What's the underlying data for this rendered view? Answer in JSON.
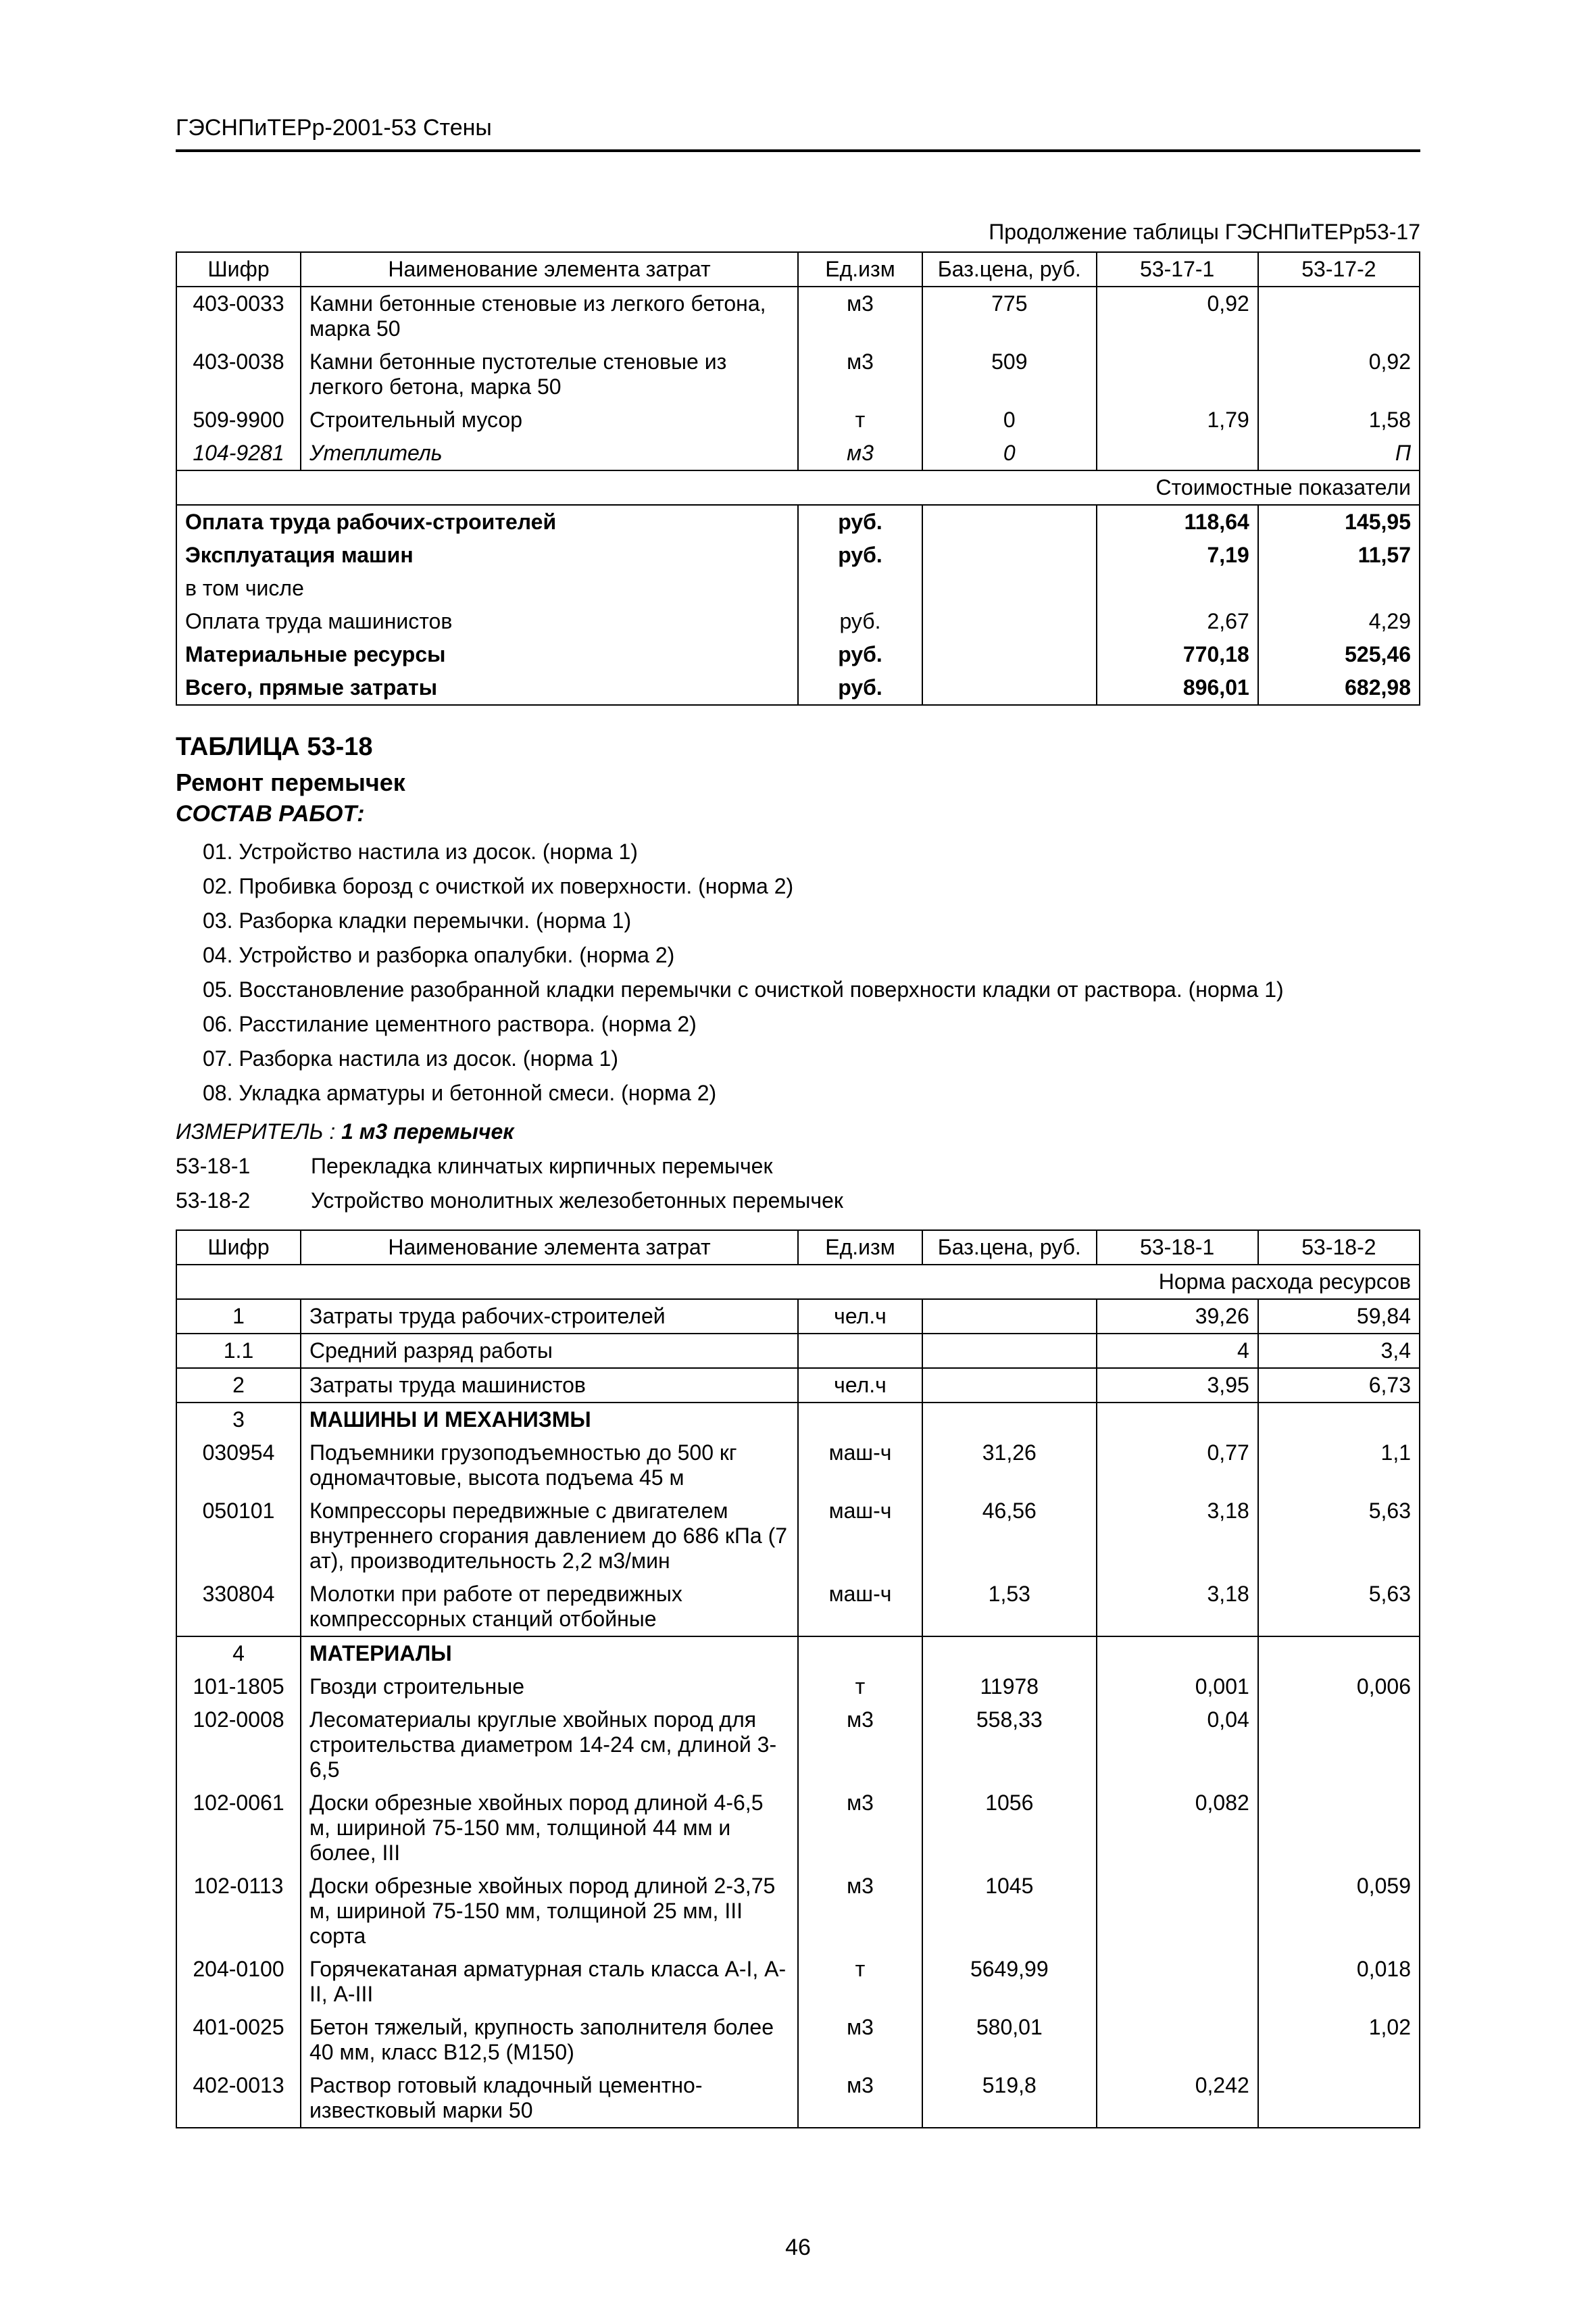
{
  "header": "ГЭСНПиТЕРр-2001-53 Стены",
  "t17": {
    "caption": "Продолжение таблицы ГЭСНПиТЕРр53-17",
    "cols": [
      "Шифр",
      "Наименование элемента затрат",
      "Ед.изм",
      "Баз.цена, руб.",
      "53-17-1",
      "53-17-2"
    ],
    "rows": [
      {
        "code": "403-0033",
        "name": "Камни бетонные стеновые из легкого бетона, марка 50",
        "ed": "м3",
        "baz": "775",
        "v1": "0,92",
        "v2": ""
      },
      {
        "code": "403-0038",
        "name": "Камни бетонные пустотелые стеновые из легкого бетона, марка 50",
        "ed": "м3",
        "baz": "509",
        "v1": "",
        "v2": "0,92"
      },
      {
        "code": "509-9900",
        "name": "Строительный мусор",
        "ed": "т",
        "baz": "0",
        "v1": "1,79",
        "v2": "1,58"
      },
      {
        "code": "104-9281",
        "name": "Утеплитель",
        "ed": "м3",
        "baz": "0",
        "v1": "",
        "v2": "П",
        "italic": true
      }
    ],
    "cost_header": "Стоимостные показатели",
    "costs": [
      {
        "name": "Оплата труда рабочих-строителей",
        "ed": "руб.",
        "v1": "118,64",
        "v2": "145,95",
        "bold": true
      },
      {
        "name": "Эксплуатация машин",
        "ed": "руб.",
        "v1": "7,19",
        "v2": "11,57",
        "bold": true
      },
      {
        "name": "в том числе",
        "ed": "",
        "v1": "",
        "v2": "",
        "bold": false
      },
      {
        "name": "Оплата труда машинистов",
        "ed": "руб.",
        "v1": "2,67",
        "v2": "4,29",
        "bold": false
      },
      {
        "name": "Материальные ресурсы",
        "ed": "руб.",
        "v1": "770,18",
        "v2": "525,46",
        "bold": true
      },
      {
        "name": "Всего, прямые затраты",
        "ed": "руб.",
        "v1": "896,01",
        "v2": "682,98",
        "bold": true
      }
    ]
  },
  "sec18": {
    "title": "ТАБЛИЦА 53-18",
    "subtitle": "Ремонт перемычек",
    "sostav": "СОСТАВ РАБОТ:",
    "works": [
      "01. Устройство настила из досок. (норма 1)",
      "02. Пробивка борозд с очисткой их поверхности. (норма 2)",
      "03. Разборка кладки перемычки. (норма 1)",
      "04. Устройство и разборка опалубки. (норма 2)",
      "05. Восстановление разобранной кладки перемычки с очисткой поверхности кладки от раствора. (норма 1)",
      "06. Расстилание цементного раствора. (норма 2)",
      "07. Разборка настила из досок. (норма 1)",
      "08. Укладка арматуры и бетонной смеси. (норма 2)"
    ],
    "izm_label": "ИЗМЕРИТЕЛЬ :",
    "izm_value": "1 м3 перемычек",
    "refs": [
      {
        "code": "53-18-1",
        "text": "Перекладка клинчатых кирпичных перемычек"
      },
      {
        "code": "53-18-2",
        "text": "Устройство монолитных железобетонных перемычек"
      }
    ]
  },
  "t18": {
    "cols": [
      "Шифр",
      "Наименование элемента затрат",
      "Ед.изм",
      "Баз.цена, руб.",
      "53-18-1",
      "53-18-2"
    ],
    "norm_header": "Норма расхода ресурсов",
    "rows": [
      {
        "code": "1",
        "name": "Затраты труда рабочих-строителей",
        "ed": "чел.ч",
        "baz": "",
        "v1": "39,26",
        "v2": "59,84"
      },
      {
        "code": "1.1",
        "name": "Средний разряд работы",
        "ed": "",
        "baz": "",
        "v1": "4",
        "v2": "3,4"
      },
      {
        "code": "2",
        "name": "Затраты труда машинистов",
        "ed": "чел.ч",
        "baz": "",
        "v1": "3,95",
        "v2": "6,73"
      },
      {
        "code": "3",
        "name": "МАШИНЫ И МЕХАНИЗМЫ",
        "ed": "",
        "baz": "",
        "v1": "",
        "v2": "",
        "bold": true,
        "nobot": true
      },
      {
        "code": "030954",
        "name": "Подъемники грузоподъемностью до 500 кг одномачтовые, высота подъема 45 м",
        "ed": "маш-ч",
        "baz": "31,26",
        "v1": "0,77",
        "v2": "1,1",
        "notop": true,
        "nobot": true
      },
      {
        "code": "050101",
        "name": "Компрессоры передвижные с двигателем внутреннего сгорания давлением до 686 кПа (7 ат), производительность 2,2 м3/мин",
        "ed": "маш-ч",
        "baz": "46,56",
        "v1": "3,18",
        "v2": "5,63",
        "notop": true,
        "nobot": true
      },
      {
        "code": "330804",
        "name": "Молотки при работе от передвижных компрессорных станций отбойные",
        "ed": "маш-ч",
        "baz": "1,53",
        "v1": "3,18",
        "v2": "5,63",
        "notop": true
      },
      {
        "code": "4",
        "name": "МАТЕРИАЛЫ",
        "ed": "",
        "baz": "",
        "v1": "",
        "v2": "",
        "bold": true,
        "nobot": true
      },
      {
        "code": "101-1805",
        "name": "Гвозди строительные",
        "ed": "т",
        "baz": "11978",
        "v1": "0,001",
        "v2": "0,006",
        "notop": true,
        "nobot": true
      },
      {
        "code": "102-0008",
        "name": "Лесоматериалы круглые хвойных пород для строительства диаметром 14-24 см, длиной 3-6,5",
        "ed": "м3",
        "baz": "558,33",
        "v1": "0,04",
        "v2": "",
        "notop": true,
        "nobot": true
      },
      {
        "code": "102-0061",
        "name": "Доски обрезные хвойных пород длиной 4-6,5 м, шириной 75-150 мм, толщиной 44 мм и более, III",
        "ed": "м3",
        "baz": "1056",
        "v1": "0,082",
        "v2": "",
        "notop": true,
        "nobot": true
      },
      {
        "code": "102-0113",
        "name": "Доски обрезные хвойных пород длиной 2-3,75 м, шириной 75-150 мм, толщиной 25 мм, III сорта",
        "ed": "м3",
        "baz": "1045",
        "v1": "",
        "v2": "0,059",
        "notop": true,
        "nobot": true
      },
      {
        "code": "204-0100",
        "name": "Горячекатаная арматурная сталь класса А-I, А-II, А-III",
        "ed": "т",
        "baz": "5649,99",
        "v1": "",
        "v2": "0,018",
        "notop": true,
        "nobot": true
      },
      {
        "code": "401-0025",
        "name": "Бетон тяжелый, крупность заполнителя более 40 мм, класс В12,5 (М150)",
        "ed": "м3",
        "baz": "580,01",
        "v1": "",
        "v2": "1,02",
        "notop": true,
        "nobot": true
      },
      {
        "code": "402-0013",
        "name": "Раствор готовый кладочный цементно-известковый марки 50",
        "ed": "м3",
        "baz": "519,8",
        "v1": "0,242",
        "v2": "",
        "notop": true
      }
    ]
  },
  "page_number": "46"
}
